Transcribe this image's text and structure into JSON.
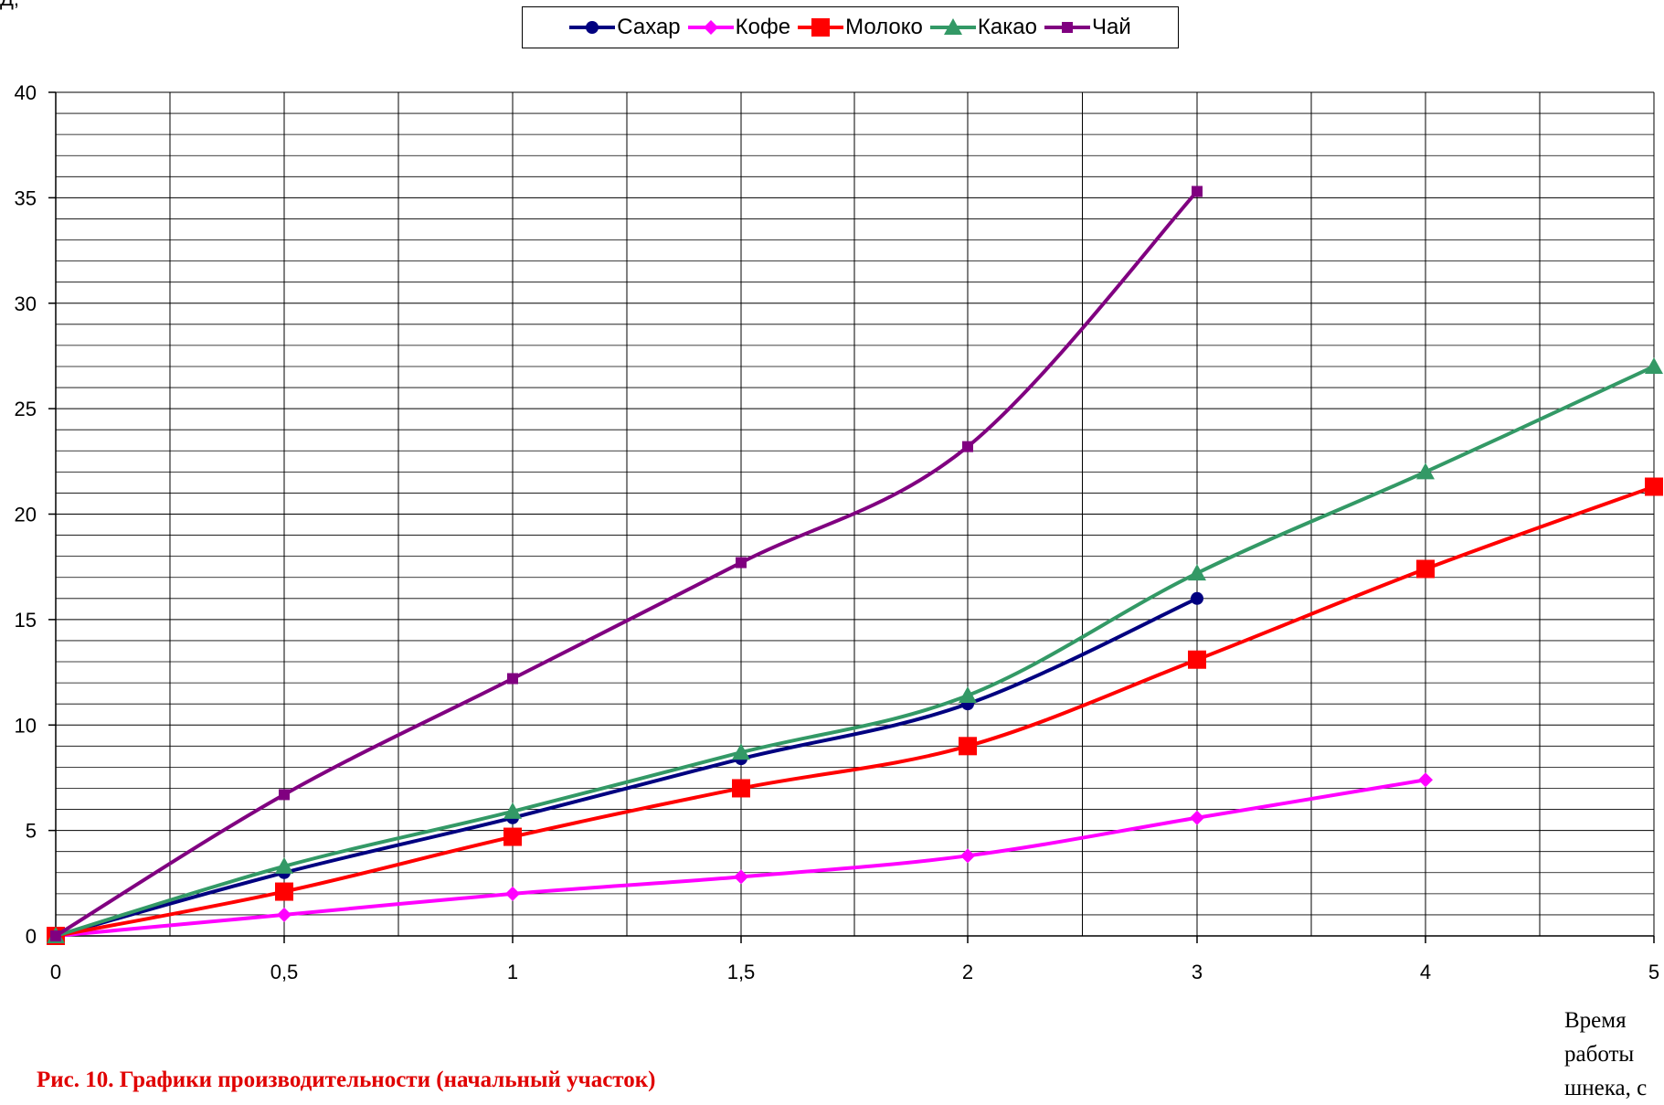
{
  "chart_data": {
    "type": "line",
    "title": "",
    "ylabel": "Д,",
    "xlabel_lines": [
      "Время",
      "работы",
      "шнека, с"
    ],
    "caption": "Рис. 10. Графики производительности (начальный участок)",
    "x": [
      0,
      0.5,
      1,
      1.5,
      2,
      3,
      4,
      5
    ],
    "x_tick_labels": [
      "0",
      "0,5",
      "1",
      "1,5",
      "2",
      "3",
      "4",
      "5"
    ],
    "y_ticks": [
      0,
      5,
      10,
      15,
      20,
      25,
      30,
      35,
      40
    ],
    "ylim": [
      0,
      40
    ],
    "grid": true,
    "legend_position": "top-center",
    "series": [
      {
        "name": "Сахар",
        "color": "#000080",
        "marker": "circle",
        "values": [
          0,
          3.0,
          5.6,
          8.4,
          11.0,
          16.0,
          null,
          null
        ]
      },
      {
        "name": "Кофе",
        "color": "#ff00ff",
        "marker": "diamond",
        "values": [
          0,
          1.0,
          2.0,
          2.8,
          3.8,
          5.6,
          7.4,
          null
        ]
      },
      {
        "name": "Молоко",
        "color": "#ff0000",
        "marker": "square",
        "values": [
          0,
          2.1,
          4.7,
          7.0,
          9.0,
          13.1,
          17.4,
          21.3
        ]
      },
      {
        "name": "Какао",
        "color": "#339966",
        "marker": "triangle",
        "values": [
          0,
          3.3,
          5.9,
          8.7,
          11.4,
          17.2,
          22.0,
          27.0
        ]
      },
      {
        "name": "Чай",
        "color": "#800080",
        "marker": "small-square",
        "values": [
          0,
          6.7,
          12.2,
          17.7,
          23.2,
          35.3,
          null,
          null
        ]
      }
    ]
  }
}
